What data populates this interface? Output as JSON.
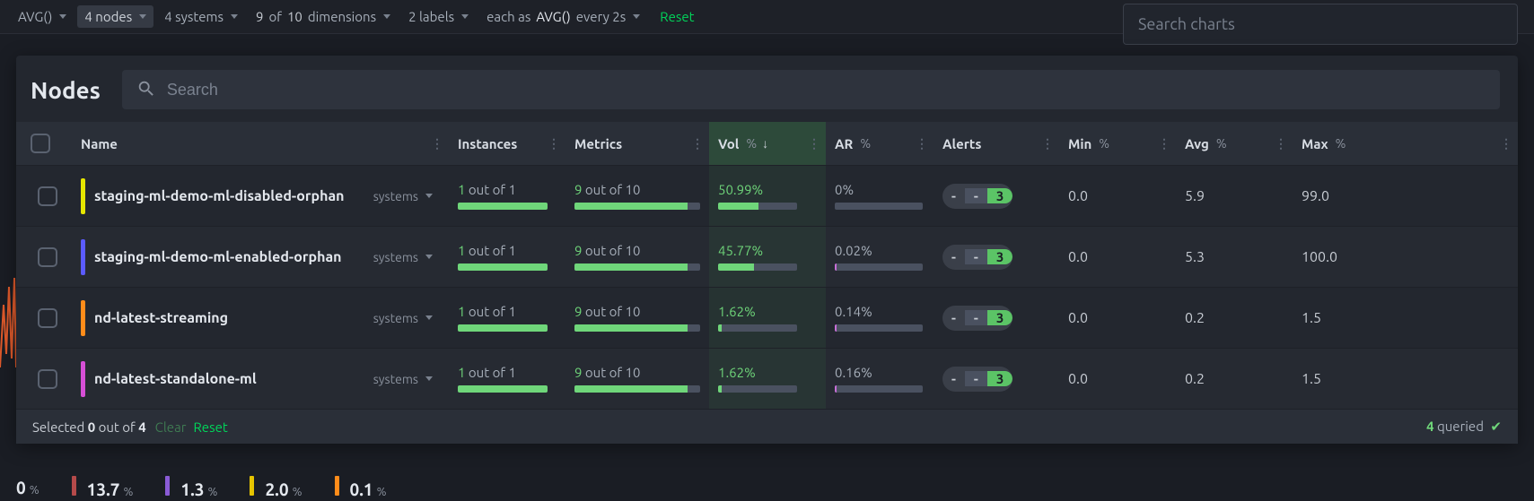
{
  "filters": {
    "agg": "AVG()",
    "nodes": "4 nodes",
    "systems": "4 systems",
    "dimensions_count": "9",
    "dimensions_total": "10",
    "dimensions_suffix": "dimensions",
    "labels": "2 labels",
    "each_prefix": "each as",
    "each_agg": "AVG()",
    "each_suffix": "every 2s",
    "reset": "Reset"
  },
  "search_charts_placeholder": "Search charts",
  "panel": {
    "title": "Nodes",
    "search_placeholder": "Search"
  },
  "columns": {
    "name": "Name",
    "instances": "Instances",
    "metrics": "Metrics",
    "vol": "Vol",
    "ar": "AR",
    "alerts": "Alerts",
    "min": "Min",
    "avg": "Avg",
    "max": "Max",
    "pct": "%"
  },
  "rows": [
    {
      "color": "#e6e600",
      "name": "staging-ml-demo-ml-disabled-orphan",
      "chip": "systems",
      "inst_hl": "1",
      "inst_rest": "out of 1",
      "inst_fill": 100,
      "met_hl": "9",
      "met_rest": "out of 10",
      "met_fill": 90,
      "vol": "50.99%",
      "vol_fill": 51,
      "vol_color": "#6fd67a",
      "ar": "0%",
      "ar_fill": 0,
      "ar_tiny": "",
      "alerts": [
        "-",
        "-",
        "3"
      ],
      "min": "0.0",
      "avg": "5.9",
      "max": "99.0"
    },
    {
      "color": "#5b5bff",
      "name": "staging-ml-demo-ml-enabled-orphan",
      "chip": "systems",
      "inst_hl": "1",
      "inst_rest": "out of 1",
      "inst_fill": 100,
      "met_hl": "9",
      "met_rest": "out of 10",
      "met_fill": 90,
      "vol": "45.77%",
      "vol_fill": 46,
      "vol_color": "#6fd67a",
      "ar": "0.02%",
      "ar_fill": 0,
      "ar_tiny": "#c76fd6",
      "alerts": [
        "-",
        "-",
        "3"
      ],
      "min": "0.0",
      "avg": "5.3",
      "max": "100.0"
    },
    {
      "color": "#ff8c1a",
      "name": "nd-latest-streaming",
      "chip": "systems",
      "inst_hl": "1",
      "inst_rest": "out of 1",
      "inst_fill": 100,
      "met_hl": "9",
      "met_rest": "out of 10",
      "met_fill": 90,
      "vol": "1.62%",
      "vol_fill": 4,
      "vol_color": "#6fd67a",
      "ar": "0.14%",
      "ar_fill": 0,
      "ar_tiny": "#c76fd6",
      "alerts": [
        "-",
        "-",
        "3"
      ],
      "min": "0.0",
      "avg": "0.2",
      "max": "1.5"
    },
    {
      "color": "#d64fd6",
      "name": "nd-latest-standalone-ml",
      "chip": "systems",
      "inst_hl": "1",
      "inst_rest": "out of 1",
      "inst_fill": 100,
      "met_hl": "9",
      "met_rest": "out of 10",
      "met_fill": 90,
      "vol": "1.62%",
      "vol_fill": 4,
      "vol_color": "#6fd67a",
      "ar": "0.16%",
      "ar_fill": 0,
      "ar_tiny": "#c76fd6",
      "alerts": [
        "-",
        "-",
        "3"
      ],
      "min": "0.0",
      "avg": "0.2",
      "max": "1.5"
    }
  ],
  "footer": {
    "selected_prefix": "Selected",
    "selected_count": "0",
    "selected_mid": "out of",
    "selected_total": "4",
    "clear": "Clear",
    "reset": "Reset",
    "queried_count": "4",
    "queried_label": "queried"
  },
  "bottom": [
    {
      "color": "",
      "val": "0",
      "unit": "%"
    },
    {
      "color": "#b54a4a",
      "val": "13.7",
      "unit": "%"
    },
    {
      "color": "#8a5bd6",
      "val": "1.3",
      "unit": "%"
    },
    {
      "color": "#e6c400",
      "val": "2.0",
      "unit": "%"
    },
    {
      "color": "#ff8c1a",
      "val": "0.1",
      "unit": "%"
    }
  ],
  "spark_color": "#e05a2b"
}
